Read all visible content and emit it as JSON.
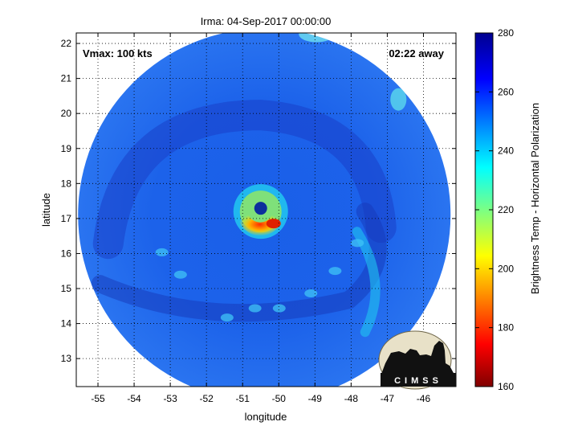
{
  "chart_data": {
    "type": "heatmap",
    "title": "Irma: 04-Sep-2017 00:00:00",
    "xlabel": "longitude",
    "ylabel": "latitude",
    "xlim": [
      -55.6,
      -45.1
    ],
    "ylim": [
      12.2,
      22.3
    ],
    "x_ticks": [
      -55,
      -54,
      -53,
      -52,
      -51,
      -50,
      -49,
      -48,
      -47,
      -46
    ],
    "y_ticks": [
      13,
      14,
      15,
      16,
      17,
      18,
      19,
      20,
      21,
      22
    ],
    "grid": "dotted",
    "storm_center": {
      "lon": -50.5,
      "lat": 17.2
    },
    "swath_center": {
      "lon": -50.4,
      "lat": 17.1
    },
    "eye_min_temp_K": 185,
    "annotations": {
      "left": "Vmax: 100 kts",
      "right": "02:22 away"
    },
    "colorbar": {
      "label": "Brightness Temp - Horizontal Polarization",
      "min": 160,
      "max": 280,
      "ticks": [
        160,
        180,
        200,
        220,
        240,
        260,
        280
      ],
      "colormap": "jet"
    }
  },
  "logo": {
    "text": "CIMSS"
  }
}
